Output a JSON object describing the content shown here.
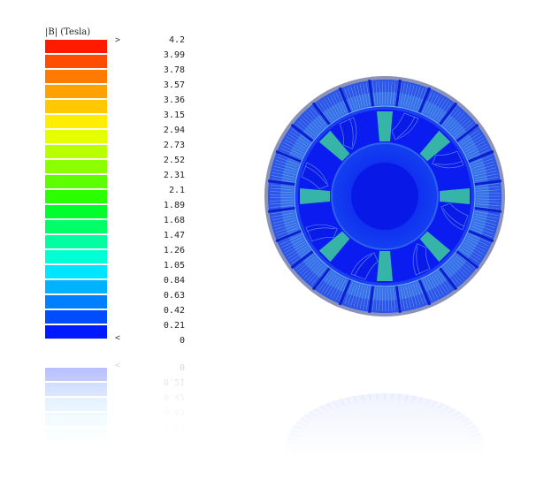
{
  "legend": {
    "title": "|B| (Tesla)",
    "marker_top": ">",
    "marker_bottom": "<",
    "ticks": [
      "4.2",
      "3.99",
      "3.78",
      "3.57",
      "3.36",
      "3.15",
      "2.94",
      "2.73",
      "2.52",
      "2.31",
      "2.1",
      "1.89",
      "1.68",
      "1.47",
      "1.26",
      "1.05",
      "0.84",
      "0.63",
      "0.42",
      "0.21",
      "0"
    ],
    "colors": [
      "#ff1a00",
      "#ff4d00",
      "#ff7a00",
      "#ffa200",
      "#ffc800",
      "#ffee00",
      "#e6ff00",
      "#b8ff00",
      "#8cff00",
      "#5dff00",
      "#2cff00",
      "#00ff2a",
      "#00ff66",
      "#00ffa0",
      "#00ffd5",
      "#00e5ff",
      "#00b2ff",
      "#007fff",
      "#004dff",
      "#001aff"
    ]
  },
  "reflection": {
    "marker": "<",
    "ticks": [
      "0",
      "0.21",
      "0.42",
      "0.63",
      "0.84"
    ]
  },
  "colors": {
    "field_low": "#0b1cf0",
    "field_mid": "#2a7cf0",
    "field_high": "#3ecf9a",
    "shell": "#8c93b8"
  }
}
